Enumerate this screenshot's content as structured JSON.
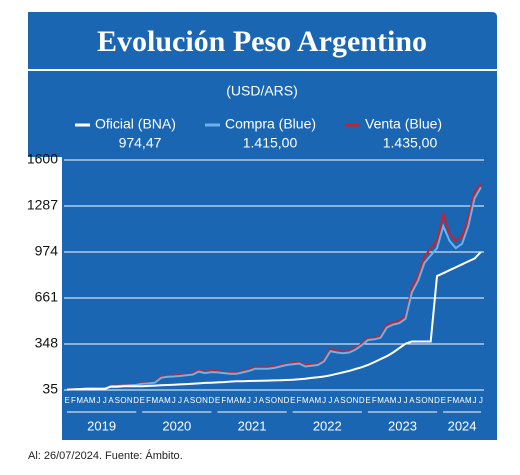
{
  "chart_data": {
    "type": "line",
    "title": "Evolución Peso Argentino",
    "subtitle": "(USD/ARS)",
    "footnote": "Al: 26/07/2024. Fuente: Ámbito.",
    "categories": [
      "E",
      "F",
      "M",
      "A",
      "M",
      "J",
      "J",
      "A",
      "S",
      "O",
      "N",
      "D",
      "E",
      "F",
      "M",
      "A",
      "M",
      "J",
      "J",
      "A",
      "S",
      "O",
      "N",
      "D",
      "E",
      "F",
      "M",
      "A",
      "M",
      "J",
      "J",
      "A",
      "S",
      "O",
      "N",
      "D",
      "E",
      "F",
      "M",
      "A",
      "M",
      "J",
      "J",
      "A",
      "S",
      "O",
      "N",
      "D",
      "E",
      "F",
      "M",
      "A",
      "M",
      "J",
      "J",
      "A",
      "S",
      "O",
      "N",
      "D",
      "E",
      "F",
      "M",
      "A",
      "M",
      "J",
      "J"
    ],
    "years": [
      "2019",
      "2020",
      "2021",
      "2022",
      "2023",
      "2024"
    ],
    "ylim": [
      35,
      1600
    ],
    "yticks": [
      35,
      348,
      661,
      974,
      1287,
      1600
    ],
    "grid": true,
    "series": [
      {
        "name": "Oficial (BNA)",
        "color": "#ffffff",
        "legend_value": "974,47",
        "values": [
          38,
          39,
          41,
          43,
          44,
          43,
          43,
          58,
          57,
          60,
          60,
          60,
          61,
          63,
          65,
          67,
          69,
          71,
          73,
          75,
          77,
          80,
          83,
          85,
          87,
          89,
          92,
          94,
          95,
          96,
          97,
          98,
          99,
          100,
          101,
          103,
          105,
          108,
          112,
          117,
          122,
          127,
          135,
          145,
          155,
          165,
          178,
          190,
          205,
          225,
          245,
          265,
          290,
          320,
          350,
          365,
          365,
          365,
          365,
          810,
          830,
          850,
          870,
          890,
          910,
          930,
          974.47
        ]
      },
      {
        "name": "Compra (Blue)",
        "color": "#6fb0e8",
        "legend_value": "1.415,00",
        "values": [
          38,
          39,
          42,
          44,
          45,
          44,
          43,
          60,
          62,
          65,
          67,
          70,
          78,
          80,
          85,
          118,
          125,
          127,
          130,
          135,
          140,
          160,
          150,
          157,
          155,
          150,
          145,
          145,
          155,
          165,
          180,
          180,
          180,
          185,
          195,
          205,
          210,
          215,
          195,
          200,
          205,
          230,
          300,
          290,
          285,
          290,
          310,
          340,
          375,
          380,
          390,
          460,
          480,
          490,
          520,
          700,
          780,
          900,
          950,
          1000,
          1150,
          1050,
          1000,
          1030,
          1150,
          1340,
          1415
        ]
      },
      {
        "name": "Venta (Blue)",
        "color": "#c8232c",
        "legend_value": "1.435,00",
        "values": [
          40,
          41,
          44,
          46,
          47,
          46,
          45,
          63,
          65,
          68,
          70,
          73,
          82,
          84,
          90,
          125,
          132,
          134,
          137,
          142,
          148,
          168,
          158,
          165,
          163,
          158,
          152,
          152,
          163,
          173,
          188,
          188,
          188,
          193,
          203,
          213,
          218,
          223,
          203,
          208,
          213,
          240,
          315,
          300,
          295,
          300,
          320,
          350,
          385,
          390,
          400,
          475,
          495,
          505,
          540,
          730,
          810,
          940,
          1000,
          1050,
          1230,
          1100,
          1050,
          1080,
          1200,
          1380,
          1435
        ]
      }
    ]
  }
}
